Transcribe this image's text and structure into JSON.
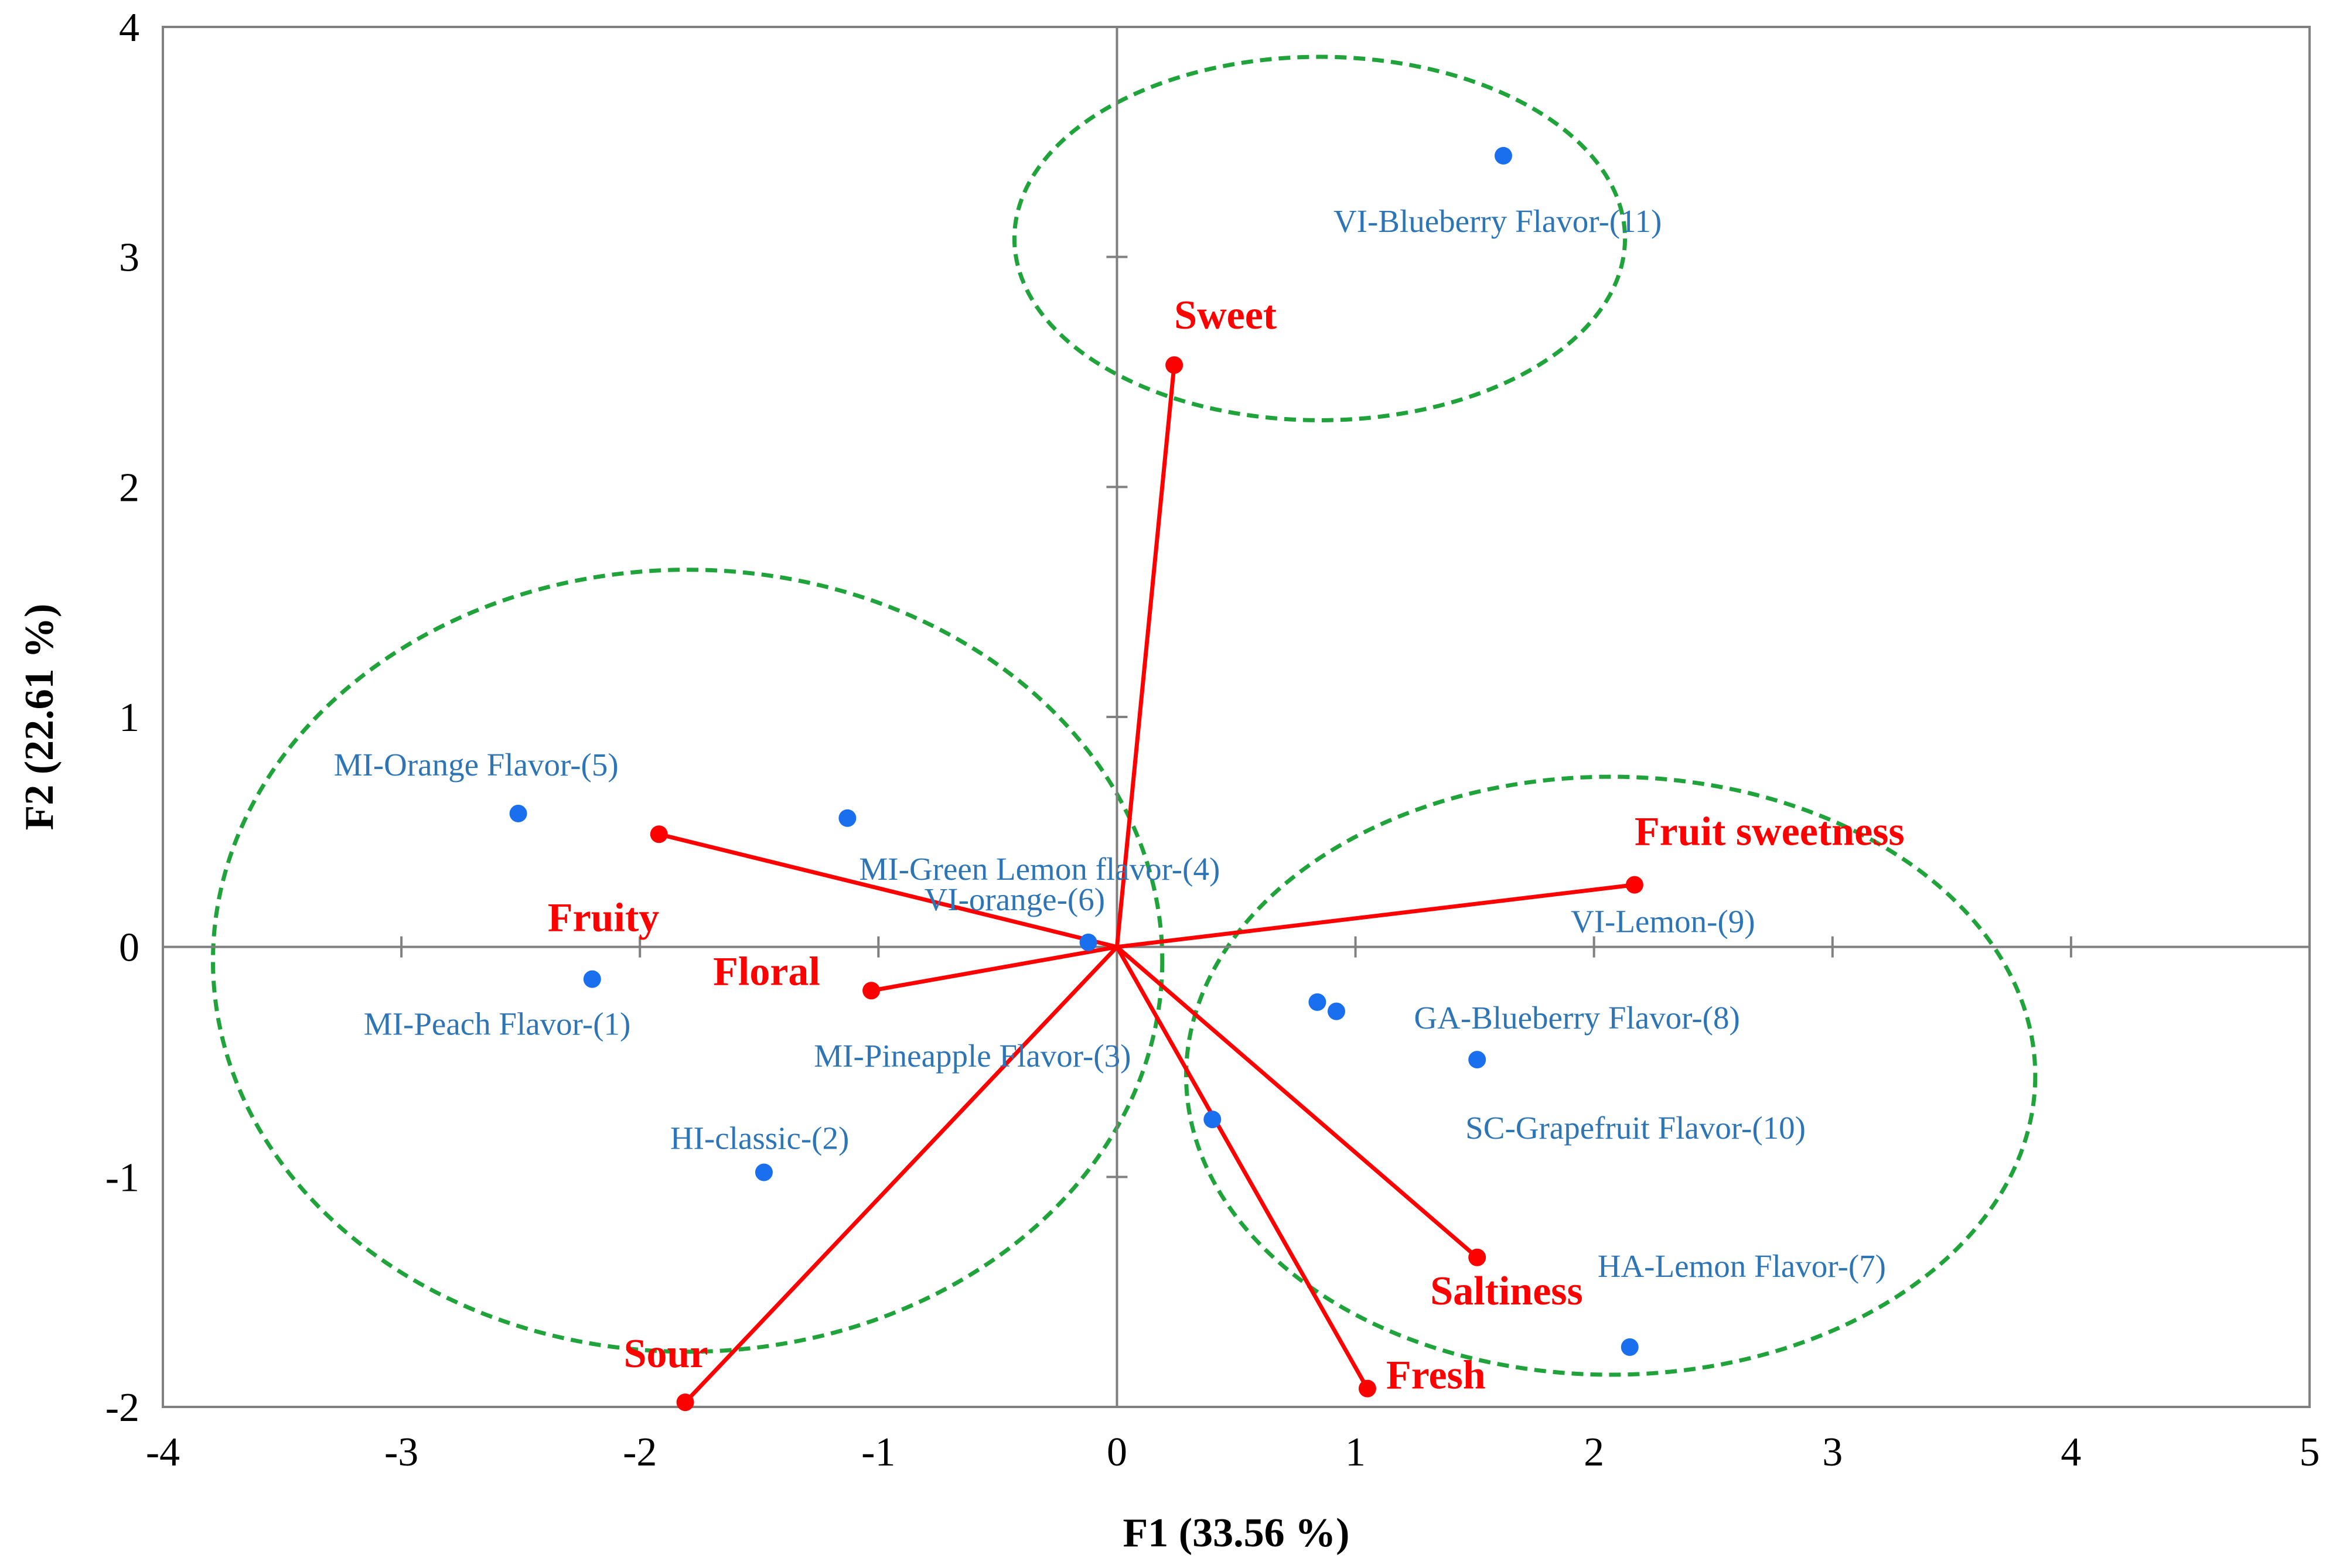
{
  "chart_data": {
    "type": "scatter",
    "xlabel": "F1 (33.56 %)",
    "ylabel": "F2 (22.61 %)",
    "xlim": [
      -4,
      5
    ],
    "ylim": [
      -2,
      4
    ],
    "x_ticks": [
      "-4",
      "-3",
      "-2",
      "-1",
      "0",
      "1",
      "2",
      "3",
      "4",
      "5"
    ],
    "y_ticks": [
      "-2",
      "-1",
      "0",
      "1",
      "2",
      "3",
      "4"
    ],
    "observations": [
      {
        "label": "MI-Peach Flavor-(1)",
        "x": -2.2,
        "y": -0.14
      },
      {
        "label": "HI-classic-(2)",
        "x": -1.48,
        "y": -0.98
      },
      {
        "label": "MI-Pineapple Flavor-(3)",
        "x": 0.4,
        "y": -0.75
      },
      {
        "label": "MI-Green Lemon flavor-(4)",
        "x": -1.13,
        "y": 0.56
      },
      {
        "label": "MI-Orange Flavor-(5)",
        "x": -2.51,
        "y": 0.58
      },
      {
        "label": "VI-orange-(6)",
        "x": -0.12,
        "y": 0.02
      },
      {
        "label": "HA-Lemon Flavor-(7)",
        "x": 2.15,
        "y": -1.74
      },
      {
        "label": "GA-Blueberry Flavor-(8)",
        "x": 0.84,
        "y": -0.24
      },
      {
        "label": "VI-Lemon-(9)",
        "x": 0.92,
        "y": -0.28
      },
      {
        "label": "SC-Grapefruit Flavor-(10)",
        "x": 1.51,
        "y": -0.49
      },
      {
        "label": "VI-Blueberry Flavor-(11)",
        "x": 1.62,
        "y": 3.44
      }
    ],
    "variables": [
      {
        "label": "Sweet",
        "x": 0.24,
        "y": 2.53
      },
      {
        "label": "Fruit sweetness",
        "x": 2.17,
        "y": 0.27
      },
      {
        "label": "Fruity",
        "x": -1.92,
        "y": 0.49
      },
      {
        "label": "Floral",
        "x": -1.03,
        "y": -0.19
      },
      {
        "label": "Sour",
        "x": -1.81,
        "y": -1.98
      },
      {
        "label": "Saltiness",
        "x": 1.51,
        "y": -1.35
      },
      {
        "label": "Fresh",
        "x": 1.05,
        "y": -1.92
      }
    ],
    "groups": [
      {
        "cx": 0.85,
        "cy": 3.08,
        "rx": 1.28,
        "ry": 0.79
      },
      {
        "cx": -1.8,
        "cy": -0.06,
        "rx": 1.99,
        "ry": 1.7
      },
      {
        "cx": 2.07,
        "cy": -0.56,
        "rx": 1.78,
        "ry": 1.3
      }
    ],
    "colors": {
      "observation": "#1a6fef",
      "observation_label": "#2e75b6",
      "variable": "#ff0000",
      "group_outline": "#1fa33a",
      "axis": "#808080"
    },
    "grid": false,
    "legend": "none"
  }
}
